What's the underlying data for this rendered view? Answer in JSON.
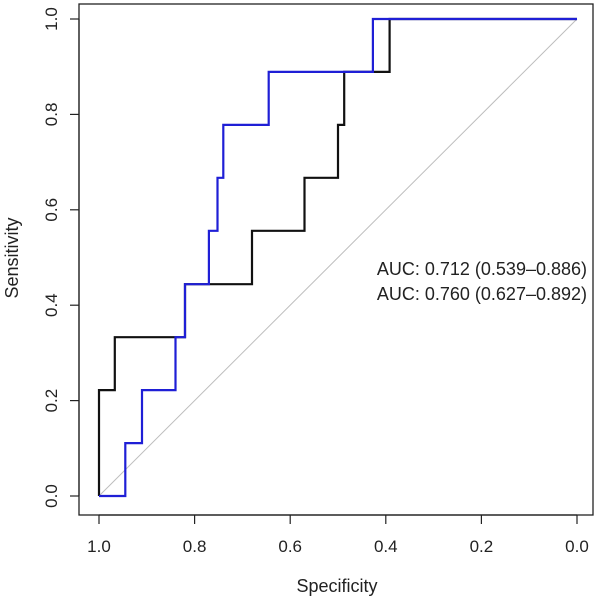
{
  "chart_data": {
    "type": "line",
    "xlabel": "Specificity",
    "ylabel": "Sensitivity",
    "xlim": [
      1.0,
      0.0
    ],
    "ylim": [
      0.0,
      1.0
    ],
    "x_reversed": true,
    "grid": false,
    "x_ticks": [
      1.0,
      0.8,
      0.6,
      0.4,
      0.2,
      0.0
    ],
    "x_tick_labels": [
      "1.0",
      "0.8",
      "0.6",
      "0.4",
      "0.2",
      "0.0"
    ],
    "y_ticks": [
      0.0,
      0.2,
      0.4,
      0.6,
      0.8,
      1.0
    ],
    "y_tick_labels": [
      "0.0",
      "0.2",
      "0.4",
      "0.6",
      "0.8",
      "1.0"
    ],
    "reference_line": {
      "from": [
        1.0,
        0.0
      ],
      "to": [
        0.0,
        1.0
      ],
      "color": "#bdbdbd"
    },
    "series": [
      {
        "color": "#111111",
        "x": [
          1.0,
          1.0,
          0.967,
          0.967,
          0.82,
          0.82,
          0.68,
          0.68,
          0.57,
          0.57,
          0.5,
          0.5,
          0.487,
          0.487,
          0.392,
          0.392,
          0.0
        ],
        "y": [
          0.0,
          0.222,
          0.222,
          0.333,
          0.333,
          0.444,
          0.444,
          0.556,
          0.556,
          0.667,
          0.667,
          0.778,
          0.778,
          0.889,
          0.889,
          1.0,
          1.0
        ]
      },
      {
        "color": "#1f1fd6",
        "x": [
          1.0,
          0.945,
          0.945,
          0.91,
          0.91,
          0.84,
          0.84,
          0.82,
          0.82,
          0.77,
          0.77,
          0.752,
          0.752,
          0.74,
          0.74,
          0.727,
          0.727,
          0.645,
          0.645,
          0.427,
          0.427,
          0.0
        ],
        "y": [
          0.0,
          0.0,
          0.111,
          0.111,
          0.222,
          0.222,
          0.333,
          0.333,
          0.444,
          0.444,
          0.556,
          0.556,
          0.667,
          0.667,
          0.778,
          0.778,
          0.778,
          0.778,
          0.889,
          0.889,
          1.0,
          1.0
        ]
      }
    ],
    "annotations": [
      {
        "text": "AUC: 0.712 (0.539–0.886)",
        "color": "#111111"
      },
      {
        "text": "AUC: 0.760 (0.627–0.892)",
        "color": "#1f1fd6"
      }
    ]
  }
}
